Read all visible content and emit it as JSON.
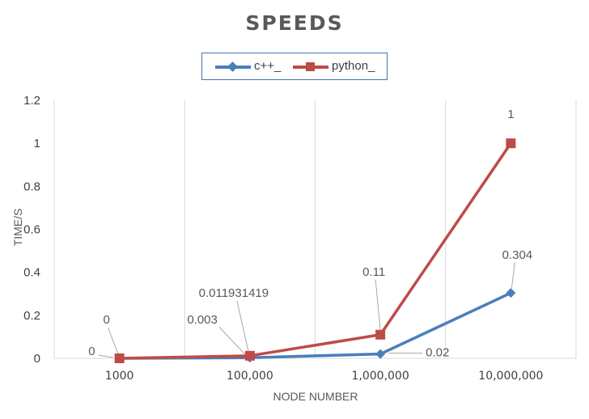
{
  "chart_data": {
    "type": "line",
    "title": "SPEEDS",
    "xlabel": "NODE NUMBER",
    "ylabel": "TIME/S",
    "categories": [
      "1000",
      "100,000",
      "1,000,000",
      "10,000,000"
    ],
    "ylim": [
      0,
      1.2
    ],
    "yticks": [
      "0",
      "0.2",
      "0.4",
      "0.6",
      "0.8",
      "1",
      "1.2"
    ],
    "grid": "vertical",
    "legend_position": "top",
    "series": [
      {
        "name": "c++_",
        "color": "#4a7ebb",
        "marker": "diamond",
        "values": [
          0,
          0.003,
          0.02,
          0.304
        ],
        "labels": [
          "0",
          "0.003",
          "0.02",
          "0.304"
        ]
      },
      {
        "name": "python_",
        "color": "#be4b48",
        "marker": "square",
        "values": [
          0,
          0.011931419,
          0.11,
          1
        ],
        "labels": [
          "0",
          "0.011931419",
          "0.11",
          "1"
        ]
      }
    ]
  }
}
